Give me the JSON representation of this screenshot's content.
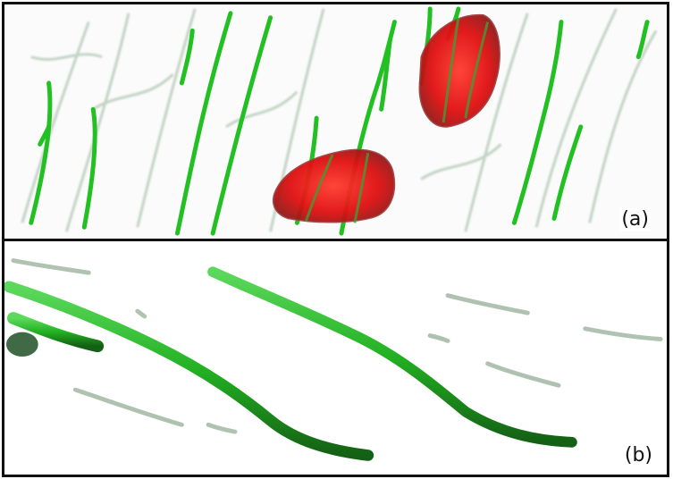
{
  "panels": [
    {
      "label": "(a)"
    },
    {
      "label": "(b)"
    }
  ],
  "colors": {
    "fiber": "#22c022",
    "fiber_shadow": "#2d6b35",
    "cell": "#e01515",
    "border": "#111111"
  }
}
